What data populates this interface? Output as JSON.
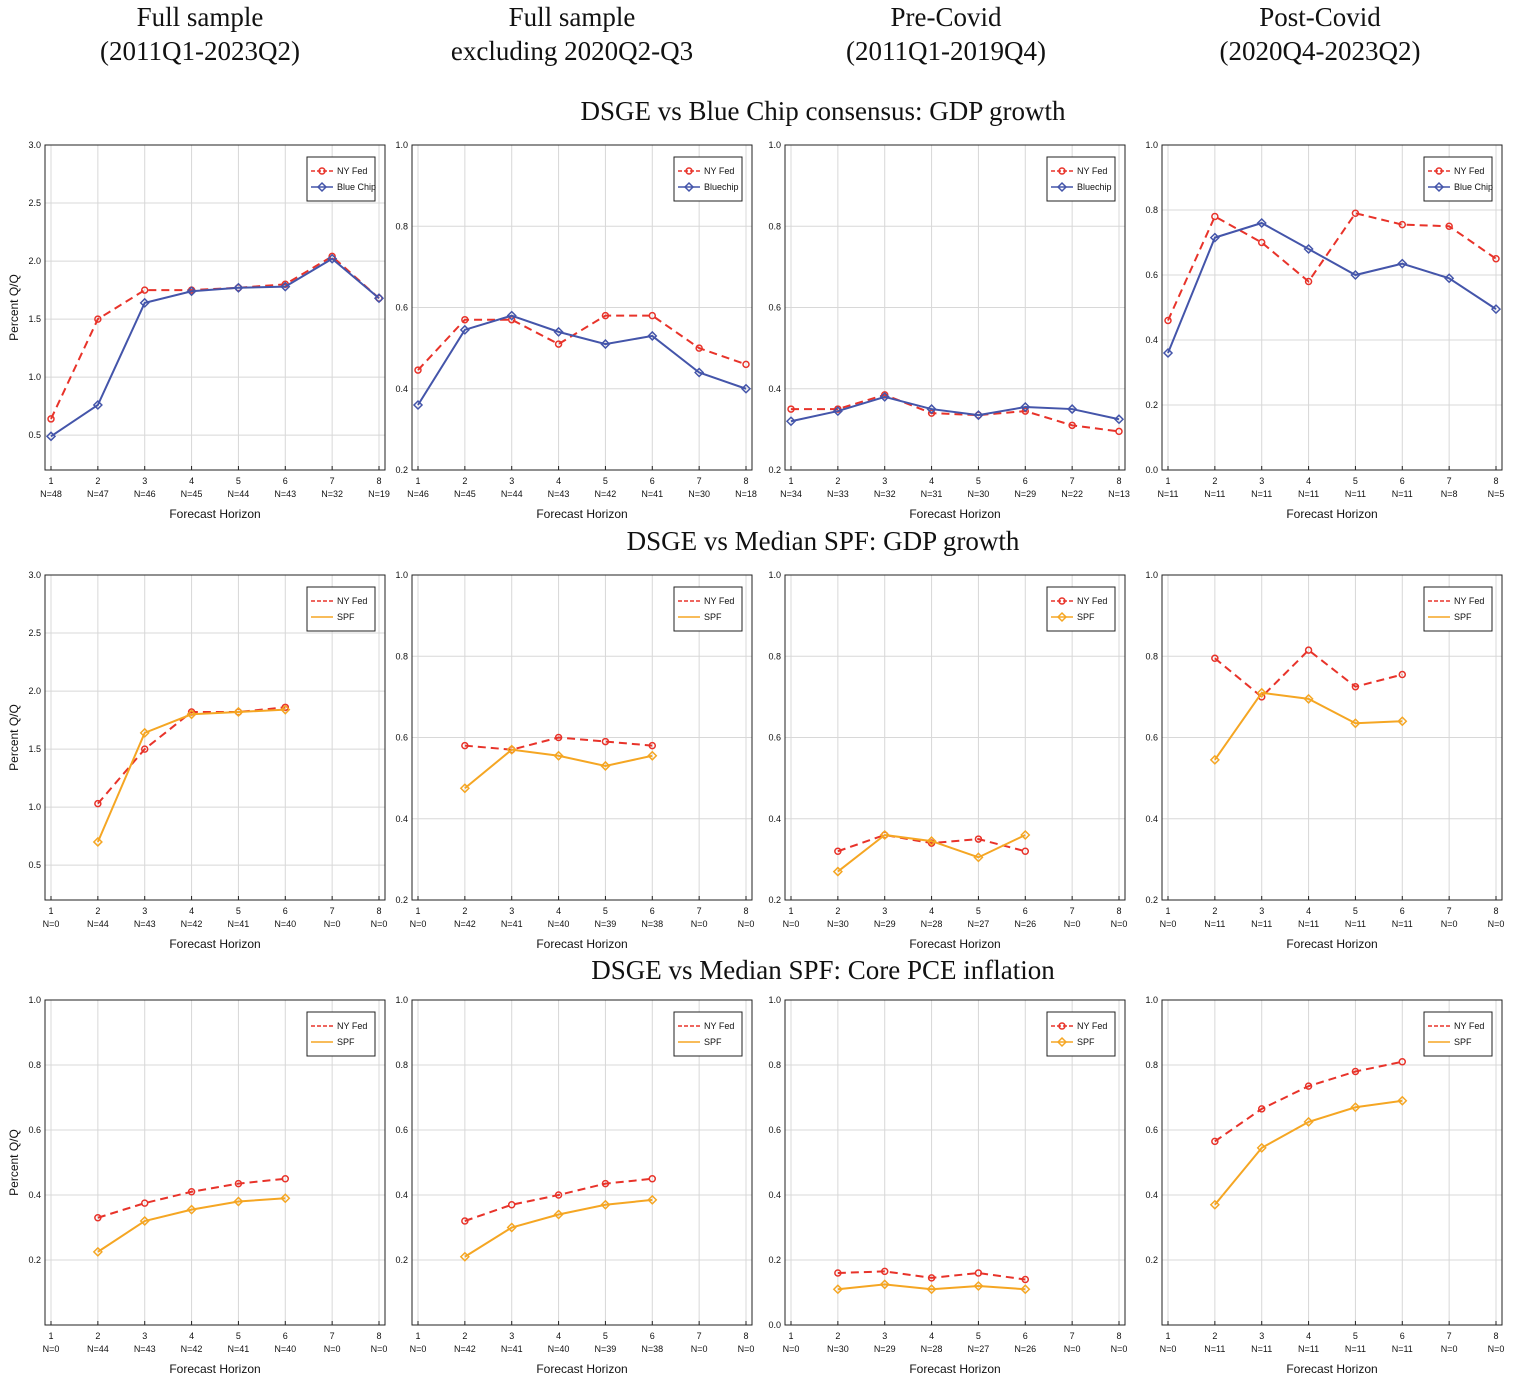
{
  "column_headers": [
    [
      "Full sample",
      "(2011Q1-2023Q2)"
    ],
    [
      "Full sample",
      "excluding 2020Q2-Q3"
    ],
    [
      "Pre-Covid",
      "(2011Q1-2019Q4)"
    ],
    [
      "Post-Covid",
      "(2020Q4-2023Q2)"
    ]
  ],
  "row_titles": [
    "DSGE vs Blue Chip consensus: GDP growth",
    "DSGE vs Median SPF: GDP growth",
    "DSGE vs Median SPF: Core PCE inflation"
  ],
  "chart_data": [
    {
      "type": "line",
      "ylabel": "Percent Q/Q",
      "xlabel": "Forecast Horizon",
      "categories": [
        "1",
        "2",
        "3",
        "4",
        "5",
        "6",
        "7",
        "8"
      ],
      "n_labels": [
        "N=48",
        "N=47",
        "N=46",
        "N=45",
        "N=44",
        "N=43",
        "N=32",
        "N=19"
      ],
      "ylim": [
        0.2,
        3.0
      ],
      "yticks": [
        0.5,
        {
          "value": 1,
          "label": "1.0"
        },
        1.5,
        {
          "value": 2,
          "label": "2.0"
        },
        2.5,
        {
          "value": 3,
          "label": "3.0"
        }
      ],
      "grid": true,
      "legend_markers": true,
      "series": [
        {
          "name": "NY Fed",
          "color": "#e8332a",
          "values": [
            0.64,
            1.5,
            1.75,
            1.75,
            1.77,
            1.8,
            2.04,
            1.68
          ]
        },
        {
          "name": "Blue Chip",
          "color": "#4455aa",
          "values": [
            0.49,
            0.76,
            1.64,
            1.74,
            1.77,
            1.78,
            2.02,
            1.68
          ]
        }
      ]
    },
    {
      "type": "line",
      "xlabel": "Forecast Horizon",
      "categories": [
        "1",
        "2",
        "3",
        "4",
        "5",
        "6",
        "7",
        "8"
      ],
      "n_labels": [
        "N=46",
        "N=45",
        "N=44",
        "N=43",
        "N=42",
        "N=41",
        "N=30",
        "N=18"
      ],
      "ylim": [
        0.2,
        1.0
      ],
      "yticks": [
        0.2,
        0.4,
        0.6,
        0.8,
        {
          "value": 1,
          "label": "1.0"
        }
      ],
      "grid": true,
      "legend_markers": true,
      "series": [
        {
          "name": "NY Fed",
          "color": "#e8332a",
          "values": [
            0.446,
            0.57,
            0.57,
            0.51,
            0.58,
            0.58,
            0.5,
            0.46
          ]
        },
        {
          "name": "Bluechip",
          "color": "#4455aa",
          "values": [
            0.36,
            0.545,
            0.58,
            0.54,
            0.51,
            0.53,
            0.44,
            0.4
          ]
        }
      ]
    },
    {
      "type": "line",
      "xlabel": "Forecast Horizon",
      "categories": [
        "1",
        "2",
        "3",
        "4",
        "5",
        "6",
        "7",
        "8"
      ],
      "n_labels": [
        "N=34",
        "N=33",
        "N=32",
        "N=31",
        "N=30",
        "N=29",
        "N=22",
        "N=13"
      ],
      "ylim": [
        0.2,
        1.0
      ],
      "yticks": [
        0.2,
        0.4,
        0.6,
        0.8,
        {
          "value": 1,
          "label": "1.0"
        }
      ],
      "grid": true,
      "legend_markers": true,
      "series": [
        {
          "name": "NY Fed",
          "color": "#e8332a",
          "values": [
            0.35,
            0.35,
            0.385,
            0.34,
            0.335,
            0.345,
            0.31,
            0.295
          ]
        },
        {
          "name": "Bluechip",
          "color": "#4455aa",
          "values": [
            0.32,
            0.345,
            0.38,
            0.35,
            0.335,
            0.355,
            0.35,
            0.325
          ]
        }
      ]
    },
    {
      "type": "line",
      "xlabel": "Forecast Horizon",
      "categories": [
        "1",
        "2",
        "3",
        "4",
        "5",
        "6",
        "7",
        "8"
      ],
      "n_labels": [
        "N=11",
        "N=11",
        "N=11",
        "N=11",
        "N=11",
        "N=11",
        "N=8",
        "N=5"
      ],
      "ylim": [
        0,
        1.0
      ],
      "yticks": [
        {
          "value": 0,
          "label": "0.0"
        },
        0.2,
        0.4,
        0.6,
        0.8,
        {
          "value": 1,
          "label": "1.0"
        }
      ],
      "grid": true,
      "legend_markers": true,
      "series": [
        {
          "name": "NY Fed",
          "color": "#e8332a",
          "values": [
            0.46,
            0.78,
            0.7,
            0.58,
            0.79,
            0.755,
            0.75,
            0.65
          ]
        },
        {
          "name": "Blue Chip",
          "color": "#4455aa",
          "values": [
            0.36,
            0.715,
            0.76,
            0.68,
            0.6,
            0.635,
            0.59,
            0.495
          ]
        }
      ]
    },
    {
      "type": "line",
      "ylabel": "Percent Q/Q",
      "xlabel": "Forecast Horizon",
      "categories": [
        "1",
        "2",
        "3",
        "4",
        "5",
        "6",
        "7",
        "8"
      ],
      "n_labels": [
        "N=0",
        "N=44",
        "N=43",
        "N=42",
        "N=41",
        "N=40",
        "N=0",
        "N=0"
      ],
      "ylim": [
        0.2,
        3.0
      ],
      "yticks": [
        0.5,
        {
          "value": 1,
          "label": "1.0"
        },
        1.5,
        {
          "value": 2,
          "label": "2.0"
        },
        2.5,
        {
          "value": 3,
          "label": "3.0"
        }
      ],
      "grid": true,
      "legend_markers": false,
      "series": [
        {
          "name": "NY Fed",
          "color": "#e8332a",
          "values": [
            null,
            1.03,
            1.5,
            1.82,
            1.82,
            1.86,
            null,
            null
          ]
        },
        {
          "name": "SPF",
          "color": "#f5a623",
          "values": [
            null,
            0.7,
            1.64,
            1.8,
            1.82,
            1.84,
            null,
            null
          ]
        }
      ]
    },
    {
      "type": "line",
      "xlabel": "Forecast Horizon",
      "categories": [
        "1",
        "2",
        "3",
        "4",
        "5",
        "6",
        "7",
        "8"
      ],
      "n_labels": [
        "N=0",
        "N=42",
        "N=41",
        "N=40",
        "N=39",
        "N=38",
        "N=0",
        "N=0"
      ],
      "ylim": [
        0.2,
        1.0
      ],
      "yticks": [
        0.2,
        0.4,
        0.6,
        0.8,
        {
          "value": 1,
          "label": "1.0"
        }
      ],
      "grid": true,
      "legend_markers": false,
      "series": [
        {
          "name": "NY Fed",
          "color": "#e8332a",
          "values": [
            null,
            0.58,
            0.57,
            0.6,
            0.59,
            0.58,
            null,
            null
          ]
        },
        {
          "name": "SPF",
          "color": "#f5a623",
          "values": [
            null,
            0.475,
            0.57,
            0.555,
            0.53,
            0.555,
            null,
            null
          ]
        }
      ]
    },
    {
      "type": "line",
      "xlabel": "Forecast Horizon",
      "categories": [
        "1",
        "2",
        "3",
        "4",
        "5",
        "6",
        "7",
        "8"
      ],
      "n_labels": [
        "N=0",
        "N=30",
        "N=29",
        "N=28",
        "N=27",
        "N=26",
        "N=0",
        "N=0"
      ],
      "ylim": [
        0.2,
        1.0
      ],
      "yticks": [
        0.2,
        0.4,
        0.6,
        0.8,
        {
          "value": 1,
          "label": "1.0"
        }
      ],
      "grid": true,
      "legend_markers": true,
      "series": [
        {
          "name": "NY Fed",
          "color": "#e8332a",
          "values": [
            null,
            0.32,
            0.36,
            0.34,
            0.35,
            0.32,
            null,
            null
          ]
        },
        {
          "name": "SPF",
          "color": "#f5a623",
          "values": [
            null,
            0.27,
            0.36,
            0.345,
            0.305,
            0.36,
            null,
            null
          ]
        }
      ]
    },
    {
      "type": "line",
      "xlabel": "Forecast Horizon",
      "categories": [
        "1",
        "2",
        "3",
        "4",
        "5",
        "6",
        "7",
        "8"
      ],
      "n_labels": [
        "N=0",
        "N=11",
        "N=11",
        "N=11",
        "N=11",
        "N=11",
        "N=0",
        "N=0"
      ],
      "ylim": [
        0.2,
        1.0
      ],
      "yticks": [
        0.2,
        0.4,
        0.6,
        0.8,
        {
          "value": 1,
          "label": "1.0"
        }
      ],
      "grid": true,
      "legend_markers": false,
      "series": [
        {
          "name": "NY Fed",
          "color": "#e8332a",
          "values": [
            null,
            0.795,
            0.7,
            0.815,
            0.725,
            0.755,
            null,
            null
          ]
        },
        {
          "name": "SPF",
          "color": "#f5a623",
          "values": [
            null,
            0.545,
            0.71,
            0.695,
            0.635,
            0.64,
            null,
            null
          ]
        }
      ]
    },
    {
      "type": "line",
      "ylabel": "Percent Q/Q",
      "xlabel": "Forecast Horizon",
      "categories": [
        "1",
        "2",
        "3",
        "4",
        "5",
        "6",
        "7",
        "8"
      ],
      "n_labels": [
        "N=0",
        "N=44",
        "N=43",
        "N=42",
        "N=41",
        "N=40",
        "N=0",
        "N=0"
      ],
      "ylim": [
        0,
        1.0
      ],
      "yticks": [
        0.2,
        0.4,
        0.6,
        0.8,
        {
          "value": 1,
          "label": "1.0"
        }
      ],
      "grid": true,
      "legend_markers": false,
      "series": [
        {
          "name": "NY Fed",
          "color": "#e8332a",
          "values": [
            null,
            0.33,
            0.375,
            0.41,
            0.435,
            0.45,
            null,
            null
          ]
        },
        {
          "name": "SPF",
          "color": "#f5a623",
          "values": [
            null,
            0.225,
            0.32,
            0.355,
            0.38,
            0.39,
            null,
            null
          ]
        }
      ]
    },
    {
      "type": "line",
      "xlabel": "Forecast Horizon",
      "categories": [
        "1",
        "2",
        "3",
        "4",
        "5",
        "6",
        "7",
        "8"
      ],
      "n_labels": [
        "N=0",
        "N=42",
        "N=41",
        "N=40",
        "N=39",
        "N=38",
        "N=0",
        "N=0"
      ],
      "ylim": [
        0,
        1.0
      ],
      "yticks": [
        0.2,
        0.4,
        0.6,
        0.8,
        {
          "value": 1,
          "label": "1.0"
        }
      ],
      "grid": true,
      "legend_markers": false,
      "series": [
        {
          "name": "NY Fed",
          "color": "#e8332a",
          "values": [
            null,
            0.32,
            0.37,
            0.4,
            0.435,
            0.45,
            null,
            null
          ]
        },
        {
          "name": "SPF",
          "color": "#f5a623",
          "values": [
            null,
            0.21,
            0.3,
            0.34,
            0.37,
            0.385,
            null,
            null
          ]
        }
      ]
    },
    {
      "type": "line",
      "xlabel": "Forecast Horizon",
      "categories": [
        "1",
        "2",
        "3",
        "4",
        "5",
        "6",
        "7",
        "8"
      ],
      "n_labels": [
        "N=0",
        "N=30",
        "N=29",
        "N=28",
        "N=27",
        "N=26",
        "N=0",
        "N=0"
      ],
      "ylim": [
        0,
        1.0
      ],
      "yticks": [
        {
          "value": 0,
          "label": "0.0"
        },
        0.2,
        0.4,
        0.6,
        0.8,
        {
          "value": 1,
          "label": "1.0"
        }
      ],
      "grid": true,
      "legend_markers": true,
      "series": [
        {
          "name": "NY Fed",
          "color": "#e8332a",
          "values": [
            null,
            0.16,
            0.165,
            0.145,
            0.16,
            0.14,
            null,
            null
          ]
        },
        {
          "name": "SPF",
          "color": "#f5a623",
          "values": [
            null,
            0.11,
            0.125,
            0.11,
            0.12,
            0.11,
            null,
            null
          ]
        }
      ]
    },
    {
      "type": "line",
      "xlabel": "Forecast Horizon",
      "categories": [
        "1",
        "2",
        "3",
        "4",
        "5",
        "6",
        "7",
        "8"
      ],
      "n_labels": [
        "N=0",
        "N=11",
        "N=11",
        "N=11",
        "N=11",
        "N=11",
        "N=0",
        "N=0"
      ],
      "ylim": [
        0,
        1.0
      ],
      "yticks": [
        0.2,
        0.4,
        0.6,
        0.8,
        {
          "value": 1,
          "label": "1.0"
        }
      ],
      "grid": true,
      "legend_markers": false,
      "series": [
        {
          "name": "NY Fed",
          "color": "#e8332a",
          "values": [
            null,
            0.565,
            0.665,
            0.735,
            0.78,
            0.81,
            null,
            null
          ]
        },
        {
          "name": "SPF",
          "color": "#f5a623",
          "values": [
            null,
            0.37,
            0.545,
            0.625,
            0.67,
            0.69,
            null,
            null
          ]
        }
      ]
    }
  ]
}
